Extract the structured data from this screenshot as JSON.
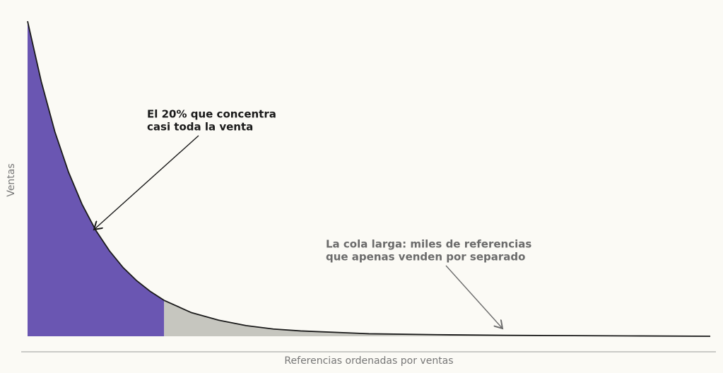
{
  "chart_data": {
    "type": "area",
    "x_label": "Referencias ordenadas por ventas",
    "y_label": "Ventas",
    "xlim": [
      0,
      100
    ],
    "ylim": [
      0,
      100
    ],
    "series": [
      {
        "color": "#6a56b2",
        "x": [
          0,
          2,
          4,
          6,
          8,
          10,
          12,
          14,
          16,
          18,
          20
        ],
        "values": [
          100,
          80.9,
          64.9,
          52.1,
          41.8,
          33.6,
          27.1,
          21.8,
          17.6,
          14.2,
          11.4
        ]
      },
      {
        "color": "#c6c6bf",
        "x": [
          20,
          24,
          28,
          32,
          36,
          40,
          50,
          60,
          70,
          80,
          90,
          100
        ],
        "values": [
          11.4,
          7.5,
          5.1,
          3.4,
          2.3,
          1.7,
          0.8,
          0.5,
          0.3,
          0.2,
          0.1,
          0
        ]
      }
    ],
    "line_color": "#1a1a1a",
    "annotations": [
      {
        "lines": [
          "El 20% que concentra",
          "casi toda la venta"
        ],
        "color": "#1a1a1a"
      },
      {
        "lines": [
          "La cola larga: miles de referencias",
          "que apenas venden por separado"
        ],
        "color": "#6b6b6b"
      }
    ]
  }
}
